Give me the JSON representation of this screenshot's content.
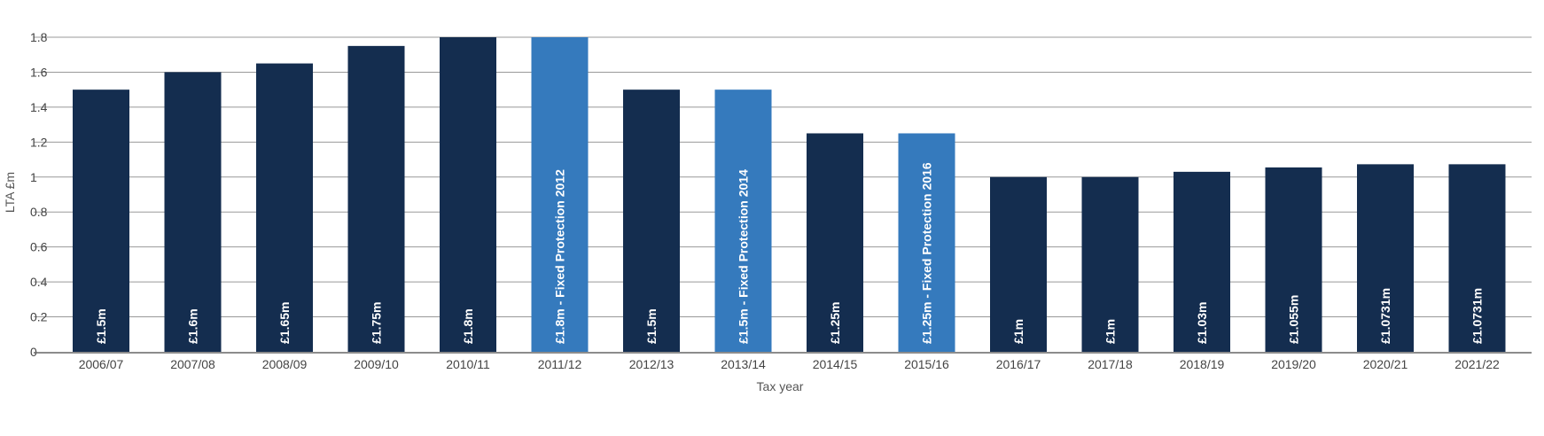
{
  "chart_data": {
    "type": "bar",
    "title": "",
    "xlabel": "Tax year",
    "ylabel": "LTA £m",
    "ylim": [
      0,
      1.8
    ],
    "yticks": [
      "0",
      "0.2",
      "0.4",
      "0.6",
      "0.8",
      "1",
      "1.2",
      "1.4",
      "1.6",
      "1.8"
    ],
    "grid": true,
    "colors": {
      "standard": "#142d4f",
      "protection": "#357abd",
      "grid": "#999999",
      "axis": "#666666"
    },
    "categories": [
      "2006/07",
      "2007/08",
      "2008/09",
      "2009/10",
      "2010/11",
      "2011/12",
      "2012/13",
      "2013/14",
      "2014/15",
      "2015/16",
      "2016/17",
      "2017/18",
      "2018/19",
      "2019/20",
      "2020/21",
      "2021/22"
    ],
    "values": [
      1.5,
      1.6,
      1.65,
      1.75,
      1.8,
      1.8,
      1.5,
      1.5,
      1.25,
      1.25,
      1,
      1,
      1.03,
      1.055,
      1.0731,
      1.0731
    ],
    "bar_labels": [
      "£1.5m",
      "£1.6m",
      "£1.65m",
      "£1.75m",
      "£1.8m",
      "£1.8m - Fixed Protection 2012",
      "£1.5m",
      "£1.5m - Fixed Protection 2014",
      "£1.25m",
      "£1.25m - Fixed Protection 2016",
      "£1m",
      "£1m",
      "£1.03m",
      "£1.055m",
      "£1.0731m",
      "£1.0731m"
    ],
    "highlighted": [
      false,
      false,
      false,
      false,
      false,
      true,
      false,
      true,
      false,
      true,
      false,
      false,
      false,
      false,
      false,
      false
    ]
  }
}
